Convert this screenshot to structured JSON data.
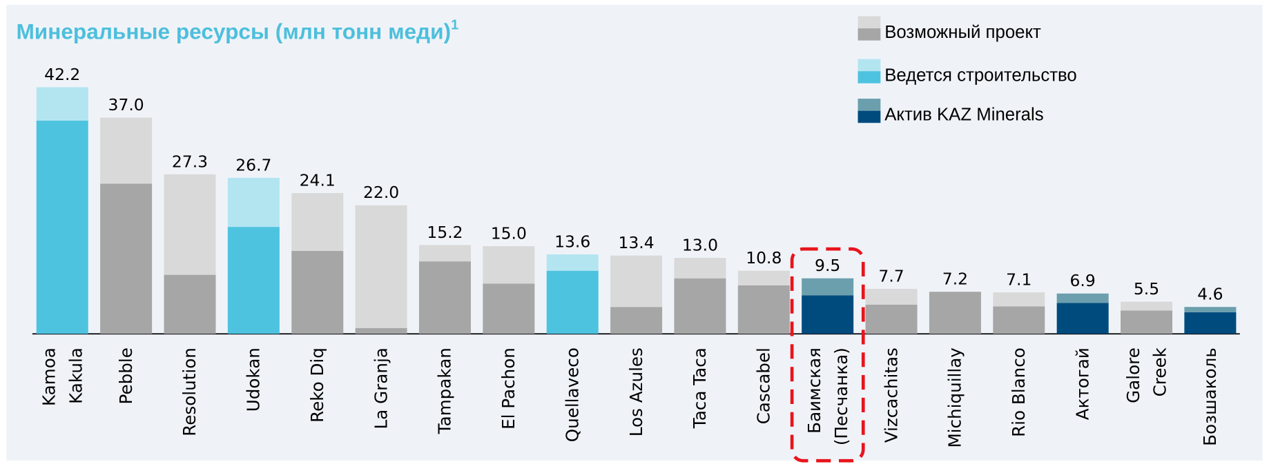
{
  "chart_data": {
    "type": "stacked_bar",
    "title": "Минеральные ресурсы (млн тонн меди)",
    "title_note": "1",
    "legend": [
      {
        "name": "Возможный проект",
        "colors": [
          "#d9d9d9",
          "#a6a6a6"
        ]
      },
      {
        "name": "Ведется строительство",
        "colors": [
          "#b3e5f1",
          "#4ec3e0"
        ]
      },
      {
        "name": "Актив KAZ Minerals",
        "colors": [
          "#6c9fad",
          "#004b7d"
        ]
      }
    ],
    "categories": [
      [
        "Kamoa",
        "Kakula"
      ],
      "Pebble",
      "Resolution",
      "Udokan",
      "Reko Diq",
      "La Granja",
      "Tampakan",
      "El Pachon",
      "Quellaveco",
      "Los Azules",
      "Taca Taca",
      "Cascabel",
      [
        "Баимская",
        "(Песчанка)"
      ],
      "Vizcachitas",
      "Michiquillay",
      "Rio Blanco",
      "Актогай",
      [
        "Galore",
        "Creek"
      ],
      "Бозшаколь"
    ],
    "status": [
      1,
      0,
      0,
      1,
      0,
      0,
      0,
      0,
      1,
      0,
      0,
      0,
      2,
      0,
      0,
      0,
      2,
      0,
      2
    ],
    "segments": [
      {
        "values": [
          36.5,
          25.7,
          10.1,
          18.3,
          14.2,
          1.0,
          12.4,
          8.6,
          10.8,
          4.6,
          9.5,
          8.3,
          6.6,
          5.0,
          7.2,
          4.7,
          5.3,
          4.0,
          3.7
        ]
      },
      {
        "values": [
          5.7,
          11.3,
          17.2,
          8.4,
          9.9,
          21.0,
          2.8,
          6.4,
          2.8,
          8.8,
          3.5,
          2.5,
          2.9,
          2.7,
          0,
          2.4,
          1.6,
          1.5,
          0.9
        ]
      }
    ],
    "totals": [
      42.2,
      37.0,
      27.3,
      26.7,
      24.1,
      22.0,
      15.2,
      15.0,
      13.6,
      13.4,
      13.0,
      10.8,
      9.5,
      7.7,
      7.2,
      7.1,
      6.9,
      5.5,
      4.6
    ],
    "value_labels": [
      "42.2",
      "37.0",
      "27.3",
      "26.7",
      "24.1",
      "22.0",
      "15.2",
      "15.0",
      "13.6",
      "13.4",
      "13.0",
      "10.8",
      "9.5",
      "7.7",
      "7.2",
      "7.1",
      "6.9",
      "5.5",
      "4.6"
    ]
  }
}
